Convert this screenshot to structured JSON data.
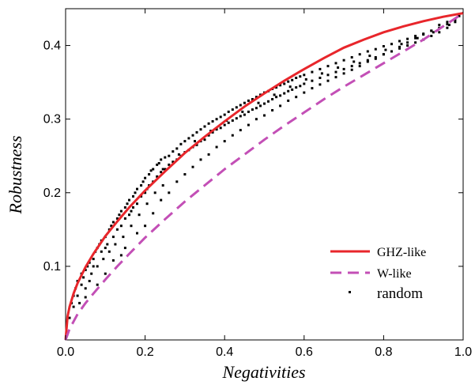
{
  "chart_data": {
    "type": "scatter",
    "title": "",
    "xlabel": "Negativities",
    "ylabel": "Robustness",
    "xlim": [
      0.0,
      1.0
    ],
    "ylim": [
      0.0,
      0.45
    ],
    "xticks": [
      "0.0",
      "0.2",
      "0.4",
      "0.6",
      "0.8",
      "1.0"
    ],
    "xtick_values": [
      0.0,
      0.2,
      0.4,
      0.6,
      0.8,
      1.0
    ],
    "yticks": [
      "0.1",
      "0.2",
      "0.3",
      "0.4"
    ],
    "ytick_values": [
      0.1,
      0.2,
      0.3,
      0.4
    ],
    "grid": false,
    "legend_position": "bottom-right",
    "series": [
      {
        "name": "GHZ-like",
        "kind": "line",
        "style": "solid",
        "color": "#e8262b",
        "x": [
          0.0,
          0.005,
          0.01,
          0.02,
          0.03,
          0.05,
          0.07,
          0.1,
          0.13,
          0.16,
          0.2,
          0.25,
          0.3,
          0.35,
          0.4,
          0.45,
          0.5,
          0.55,
          0.6,
          0.65,
          0.7,
          0.75,
          0.8,
          0.85,
          0.9,
          0.95,
          1.0
        ],
        "y": [
          0.0,
          0.032,
          0.045,
          0.063,
          0.077,
          0.099,
          0.117,
          0.141,
          0.161,
          0.18,
          0.203,
          0.229,
          0.254,
          0.276,
          0.297,
          0.317,
          0.335,
          0.352,
          0.368,
          0.383,
          0.397,
          0.408,
          0.418,
          0.426,
          0.433,
          0.439,
          0.444
        ]
      },
      {
        "name": "W-like",
        "kind": "line",
        "style": "dashed",
        "color": "#c34fb6",
        "x": [
          0.0,
          0.01,
          0.02,
          0.03,
          0.05,
          0.07,
          0.1,
          0.13,
          0.16,
          0.2,
          0.25,
          0.3,
          0.35,
          0.4,
          0.45,
          0.5,
          0.55,
          0.6,
          0.65,
          0.7,
          0.75,
          0.8,
          0.85,
          0.9,
          0.95,
          1.0
        ],
        "y": [
          0.0,
          0.015,
          0.025,
          0.035,
          0.05,
          0.063,
          0.082,
          0.1,
          0.117,
          0.139,
          0.164,
          0.188,
          0.21,
          0.232,
          0.252,
          0.272,
          0.291,
          0.309,
          0.327,
          0.344,
          0.36,
          0.376,
          0.392,
          0.408,
          0.426,
          0.444
        ]
      },
      {
        "name": "random",
        "kind": "scatter",
        "color": "#000000",
        "points": [
          [
            0.01,
            0.03
          ],
          [
            0.015,
            0.05
          ],
          [
            0.02,
            0.045
          ],
          [
            0.02,
            0.06
          ],
          [
            0.025,
            0.07
          ],
          [
            0.03,
            0.06
          ],
          [
            0.03,
            0.08
          ],
          [
            0.035,
            0.05
          ],
          [
            0.04,
            0.09
          ],
          [
            0.04,
            0.075
          ],
          [
            0.045,
            0.085
          ],
          [
            0.05,
            0.095
          ],
          [
            0.05,
            0.07
          ],
          [
            0.055,
            0.1
          ],
          [
            0.06,
            0.105
          ],
          [
            0.06,
            0.08
          ],
          [
            0.065,
            0.09
          ],
          [
            0.07,
            0.11
          ],
          [
            0.07,
            0.1
          ],
          [
            0.075,
            0.12
          ],
          [
            0.08,
            0.125
          ],
          [
            0.08,
            0.1
          ],
          [
            0.085,
            0.13
          ],
          [
            0.09,
            0.12
          ],
          [
            0.09,
            0.135
          ],
          [
            0.095,
            0.11
          ],
          [
            0.1,
            0.14
          ],
          [
            0.1,
            0.125
          ],
          [
            0.105,
            0.13
          ],
          [
            0.11,
            0.15
          ],
          [
            0.11,
            0.12
          ],
          [
            0.115,
            0.155
          ],
          [
            0.12,
            0.14
          ],
          [
            0.12,
            0.16
          ],
          [
            0.125,
            0.13
          ],
          [
            0.13,
            0.165
          ],
          [
            0.13,
            0.15
          ],
          [
            0.135,
            0.17
          ],
          [
            0.14,
            0.155
          ],
          [
            0.14,
            0.175
          ],
          [
            0.145,
            0.14
          ],
          [
            0.15,
            0.18
          ],
          [
            0.15,
            0.165
          ],
          [
            0.155,
            0.185
          ],
          [
            0.16,
            0.17
          ],
          [
            0.16,
            0.19
          ],
          [
            0.165,
            0.155
          ],
          [
            0.17,
            0.195
          ],
          [
            0.17,
            0.18
          ],
          [
            0.175,
            0.2
          ],
          [
            0.18,
            0.185
          ],
          [
            0.18,
            0.205
          ],
          [
            0.185,
            0.17
          ],
          [
            0.19,
            0.21
          ],
          [
            0.19,
            0.195
          ],
          [
            0.195,
            0.215
          ],
          [
            0.2,
            0.2
          ],
          [
            0.2,
            0.22
          ],
          [
            0.205,
            0.185
          ],
          [
            0.21,
            0.225
          ],
          [
            0.21,
            0.21
          ],
          [
            0.215,
            0.23
          ],
          [
            0.22,
            0.215
          ],
          [
            0.22,
            0.232
          ],
          [
            0.225,
            0.2
          ],
          [
            0.23,
            0.238
          ],
          [
            0.23,
            0.222
          ],
          [
            0.235,
            0.24
          ],
          [
            0.24,
            0.228
          ],
          [
            0.24,
            0.245
          ],
          [
            0.245,
            0.21
          ],
          [
            0.25,
            0.248
          ],
          [
            0.25,
            0.232
          ],
          [
            0.26,
            0.25
          ],
          [
            0.26,
            0.238
          ],
          [
            0.27,
            0.256
          ],
          [
            0.27,
            0.242
          ],
          [
            0.28,
            0.26
          ],
          [
            0.28,
            0.245
          ],
          [
            0.29,
            0.266
          ],
          [
            0.29,
            0.25
          ],
          [
            0.3,
            0.27
          ],
          [
            0.3,
            0.255
          ],
          [
            0.31,
            0.274
          ],
          [
            0.31,
            0.258
          ],
          [
            0.32,
            0.278
          ],
          [
            0.32,
            0.262
          ],
          [
            0.33,
            0.282
          ],
          [
            0.33,
            0.265
          ],
          [
            0.34,
            0.286
          ],
          [
            0.34,
            0.27
          ],
          [
            0.35,
            0.29
          ],
          [
            0.35,
            0.272
          ],
          [
            0.36,
            0.294
          ],
          [
            0.36,
            0.278
          ],
          [
            0.37,
            0.297
          ],
          [
            0.37,
            0.282
          ],
          [
            0.38,
            0.3
          ],
          [
            0.38,
            0.286
          ],
          [
            0.39,
            0.303
          ],
          [
            0.39,
            0.288
          ],
          [
            0.4,
            0.306
          ],
          [
            0.4,
            0.292
          ],
          [
            0.41,
            0.31
          ],
          [
            0.41,
            0.295
          ],
          [
            0.42,
            0.313
          ],
          [
            0.42,
            0.298
          ],
          [
            0.43,
            0.316
          ],
          [
            0.43,
            0.301
          ],
          [
            0.44,
            0.319
          ],
          [
            0.44,
            0.304
          ],
          [
            0.45,
            0.322
          ],
          [
            0.45,
            0.306
          ],
          [
            0.46,
            0.325
          ],
          [
            0.46,
            0.31
          ],
          [
            0.47,
            0.327
          ],
          [
            0.47,
            0.313
          ],
          [
            0.48,
            0.33
          ],
          [
            0.48,
            0.315
          ],
          [
            0.49,
            0.333
          ],
          [
            0.49,
            0.318
          ],
          [
            0.5,
            0.336
          ],
          [
            0.5,
            0.321
          ],
          [
            0.51,
            0.338
          ],
          [
            0.51,
            0.324
          ],
          [
            0.52,
            0.341
          ],
          [
            0.52,
            0.327
          ],
          [
            0.53,
            0.343
          ],
          [
            0.53,
            0.33
          ],
          [
            0.54,
            0.346
          ],
          [
            0.54,
            0.332
          ],
          [
            0.55,
            0.348
          ],
          [
            0.55,
            0.335
          ],
          [
            0.56,
            0.351
          ],
          [
            0.56,
            0.338
          ],
          [
            0.57,
            0.353
          ],
          [
            0.57,
            0.34
          ],
          [
            0.58,
            0.356
          ],
          [
            0.58,
            0.343
          ],
          [
            0.59,
            0.358
          ],
          [
            0.59,
            0.345
          ],
          [
            0.6,
            0.36
          ],
          [
            0.6,
            0.348
          ],
          [
            0.62,
            0.364
          ],
          [
            0.62,
            0.352
          ],
          [
            0.64,
            0.368
          ],
          [
            0.64,
            0.356
          ],
          [
            0.66,
            0.372
          ],
          [
            0.66,
            0.36
          ],
          [
            0.68,
            0.376
          ],
          [
            0.68,
            0.364
          ],
          [
            0.7,
            0.38
          ],
          [
            0.7,
            0.368
          ],
          [
            0.72,
            0.384
          ],
          [
            0.72,
            0.372
          ],
          [
            0.74,
            0.388
          ],
          [
            0.74,
            0.376
          ],
          [
            0.76,
            0.392
          ],
          [
            0.76,
            0.38
          ],
          [
            0.78,
            0.395
          ],
          [
            0.78,
            0.384
          ],
          [
            0.8,
            0.399
          ],
          [
            0.8,
            0.388
          ],
          [
            0.82,
            0.402
          ],
          [
            0.82,
            0.392
          ],
          [
            0.84,
            0.406
          ],
          [
            0.84,
            0.396
          ],
          [
            0.86,
            0.409
          ],
          [
            0.86,
            0.4
          ],
          [
            0.88,
            0.413
          ],
          [
            0.88,
            0.404
          ],
          [
            0.9,
            0.416
          ],
          [
            0.9,
            0.408
          ],
          [
            0.92,
            0.42
          ],
          [
            0.92,
            0.413
          ],
          [
            0.94,
            0.424
          ],
          [
            0.94,
            0.418
          ],
          [
            0.96,
            0.429
          ],
          [
            0.96,
            0.424
          ],
          [
            0.98,
            0.435
          ],
          [
            0.98,
            0.432
          ],
          [
            0.99,
            0.44
          ],
          [
            0.05,
            0.058
          ],
          [
            0.08,
            0.075
          ],
          [
            0.12,
            0.108
          ],
          [
            0.15,
            0.125
          ],
          [
            0.18,
            0.145
          ],
          [
            0.22,
            0.172
          ],
          [
            0.26,
            0.2
          ],
          [
            0.3,
            0.225
          ],
          [
            0.34,
            0.245
          ],
          [
            0.38,
            0.262
          ],
          [
            0.42,
            0.278
          ],
          [
            0.46,
            0.292
          ],
          [
            0.5,
            0.305
          ],
          [
            0.54,
            0.318
          ],
          [
            0.58,
            0.33
          ],
          [
            0.62,
            0.342
          ],
          [
            0.66,
            0.352
          ],
          [
            0.7,
            0.362
          ],
          [
            0.74,
            0.372
          ],
          [
            0.78,
            0.382
          ],
          [
            0.82,
            0.392
          ],
          [
            0.86,
            0.404
          ],
          [
            0.9,
            0.415
          ],
          [
            0.94,
            0.428
          ],
          [
            0.1,
            0.09
          ],
          [
            0.14,
            0.115
          ],
          [
            0.2,
            0.155
          ],
          [
            0.24,
            0.19
          ],
          [
            0.28,
            0.215
          ],
          [
            0.32,
            0.235
          ],
          [
            0.36,
            0.252
          ],
          [
            0.4,
            0.27
          ],
          [
            0.44,
            0.285
          ],
          [
            0.48,
            0.3
          ],
          [
            0.52,
            0.312
          ],
          [
            0.56,
            0.325
          ],
          [
            0.6,
            0.336
          ],
          [
            0.64,
            0.347
          ],
          [
            0.68,
            0.357
          ],
          [
            0.72,
            0.367
          ],
          [
            0.76,
            0.378
          ],
          [
            0.8,
            0.388
          ],
          [
            0.84,
            0.398
          ],
          [
            0.88,
            0.41
          ],
          [
            0.92,
            0.42
          ],
          [
            0.96,
            0.432
          ],
          [
            0.165,
            0.175
          ],
          [
            0.205,
            0.205
          ],
          [
            0.245,
            0.232
          ],
          [
            0.285,
            0.252
          ],
          [
            0.325,
            0.27
          ],
          [
            0.365,
            0.284
          ],
          [
            0.405,
            0.298
          ],
          [
            0.445,
            0.31
          ],
          [
            0.485,
            0.322
          ],
          [
            0.525,
            0.333
          ],
          [
            0.565,
            0.344
          ],
          [
            0.605,
            0.354
          ],
          [
            0.645,
            0.362
          ],
          [
            0.685,
            0.37
          ],
          [
            0.725,
            0.378
          ],
          [
            0.765,
            0.386
          ],
          [
            0.805,
            0.394
          ],
          [
            0.845,
            0.402
          ],
          [
            0.885,
            0.41
          ],
          [
            0.925,
            0.418
          ],
          [
            0.965,
            0.428
          ]
        ]
      }
    ]
  }
}
